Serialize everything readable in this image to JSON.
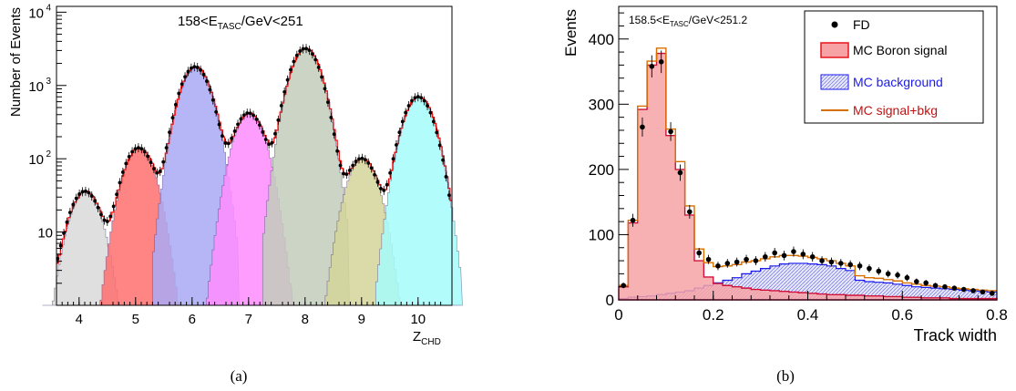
{
  "panel_a": {
    "annotation": "158<E_TASC/GeV<251",
    "annotation_main": "158<E",
    "annotation_sub": "TASC",
    "annotation_tail": "/GeV<251",
    "ylabel": "Number of Events",
    "xlabel_main": "Z",
    "xlabel_sub": "CHD",
    "caption": "(a)"
  },
  "panel_b": {
    "annotation_main": "158.5<E",
    "annotation_sub": "TASC",
    "annotation_tail": "/GeV<251.2",
    "ylabel": "Events",
    "xlabel": "Track width",
    "caption": "(b)",
    "legend": [
      {
        "label": "FD",
        "color": "#000000",
        "style": "marker"
      },
      {
        "label": "MC Boron signal",
        "color": "#e8151b",
        "style": "fill"
      },
      {
        "label": "MC background",
        "color": "#1a1aee",
        "style": "hatch"
      },
      {
        "label": "MC signal+bkg",
        "color": "#d76f00",
        "style": "line"
      }
    ]
  },
  "chart_data": [
    {
      "type": "area",
      "title": "158<E_TASC/GeV<251",
      "xlabel": "Z_CHD",
      "ylabel": "Number of Events",
      "xlim": [
        3.6,
        10.6
      ],
      "ylim": [
        1,
        12000
      ],
      "yscale": "log",
      "xticks": [
        4,
        5,
        6,
        7,
        8,
        9,
        10
      ],
      "yticks": [
        "10",
        "10^2",
        "10^3",
        "10^4"
      ],
      "series": [
        {
          "color": "#d9d9d9",
          "peak_x": 4.1,
          "peak_y": 35
        },
        {
          "color": "#ff6f6f",
          "peak_x": 5.05,
          "peak_y": 140
        },
        {
          "color": "#a9a9f5",
          "peak_x": 6.05,
          "peak_y": 1800
        },
        {
          "color": "#ff8cff",
          "peak_x": 7.0,
          "peak_y": 420
        },
        {
          "color": "#c2ccbb",
          "peak_x": 8.0,
          "peak_y": 3200
        },
        {
          "color": "#d5d59a",
          "peak_x": 9.0,
          "peak_y": 100
        },
        {
          "color": "#a6fbfb",
          "peak_x": 10.0,
          "peak_y": 700
        }
      ]
    },
    {
      "type": "bar",
      "title": "158.5<E_TASC/GeV<251.2",
      "xlabel": "Track width",
      "ylabel": "Events",
      "xlim": [
        0,
        0.8
      ],
      "ylim": [
        0,
        450
      ],
      "xticks": [
        0,
        0.2,
        0.4,
        0.6,
        0.8
      ],
      "yticks": [
        0,
        100,
        200,
        300,
        400
      ],
      "x": [
        0.01,
        0.03,
        0.05,
        0.07,
        0.09,
        0.11,
        0.13,
        0.15,
        0.17,
        0.19,
        0.21,
        0.23,
        0.25,
        0.27,
        0.29,
        0.31,
        0.33,
        0.35,
        0.37,
        0.39,
        0.41,
        0.43,
        0.45,
        0.47,
        0.49,
        0.51,
        0.53,
        0.55,
        0.57,
        0.59,
        0.61,
        0.63,
        0.65,
        0.67,
        0.69,
        0.71,
        0.73,
        0.75,
        0.77,
        0.79
      ],
      "series": [
        {
          "name": "FD",
          "values": [
            22,
            122,
            265,
            358,
            365,
            258,
            195,
            135,
            72,
            62,
            52,
            56,
            58,
            62,
            60,
            66,
            72,
            68,
            74,
            70,
            66,
            60,
            58,
            56,
            54,
            52,
            48,
            44,
            40,
            38,
            34,
            28,
            26,
            22,
            20,
            18,
            16,
            14,
            12,
            10
          ]
        },
        {
          "name": "MC Boron signal",
          "values": [
            20,
            118,
            292,
            360,
            378,
            252,
            200,
            130,
            60,
            35,
            25,
            22,
            20,
            18,
            16,
            15,
            14,
            13,
            12,
            11,
            10,
            9,
            8,
            8,
            7,
            7,
            6,
            6,
            5,
            5,
            4,
            4,
            3,
            3,
            3,
            2,
            2,
            2,
            2,
            2
          ]
        },
        {
          "name": "MC background",
          "values": [
            2,
            4,
            5,
            6,
            8,
            10,
            12,
            14,
            18,
            22,
            26,
            30,
            34,
            40,
            44,
            48,
            52,
            55,
            56,
            56,
            55,
            54,
            52,
            48,
            45,
            30,
            28,
            27,
            26,
            24,
            22,
            20,
            19,
            18,
            17,
            16,
            15,
            14,
            13,
            12
          ]
        },
        {
          "name": "MC signal+bkg",
          "values": [
            22,
            122,
            297,
            366,
            386,
            262,
            212,
            144,
            78,
            57,
            51,
            52,
            54,
            58,
            60,
            63,
            66,
            68,
            68,
            67,
            65,
            63,
            60,
            56,
            52,
            37,
            34,
            33,
            31,
            29,
            26,
            24,
            22,
            21,
            20,
            18,
            17,
            16,
            15,
            14
          ]
        }
      ]
    }
  ]
}
